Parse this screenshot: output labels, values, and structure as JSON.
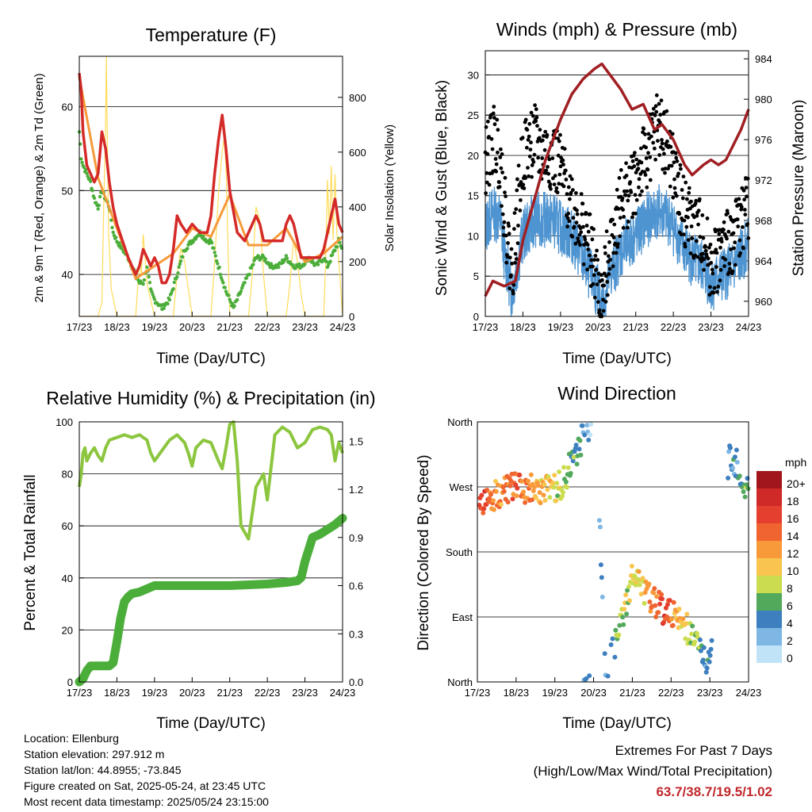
{
  "panels": {
    "temperature": {
      "title": "Temperature (F)",
      "ylabel_left": "2m & 9m T (Red, Orange) & 2m Td (Green)",
      "ylabel_right": "Solar Insolation (Yellow)",
      "xlabel": "Time (Day/UTC)"
    },
    "winds": {
      "title": "Winds (mph) & Pressure (mb)",
      "ylabel_left": "Sonic Wind & Gust (Blue, Black)",
      "ylabel_right": "Station Pressure (Maroon)",
      "xlabel": "Time (Day/UTC)"
    },
    "humidity": {
      "title": "Relative Humidity (%) & Precipitation (in)",
      "ylabel_left": "Percent & Total Rainfall",
      "xlabel": "Time (Day/UTC)"
    },
    "direction": {
      "title": "Wind Direction",
      "ylabel_left": "Direction (Colored By Speed)",
      "xlabel": "Time (Day/UTC)",
      "colorbar_title": "mph",
      "colorbar_labels": [
        "20+",
        "18",
        "16",
        "14",
        "12",
        "10",
        "8",
        "6",
        "4",
        "2",
        "0"
      ],
      "colorbar_colors": [
        "#a1161c",
        "#cf2a27",
        "#e5402f",
        "#f0642f",
        "#f99a3a",
        "#fac54e",
        "#cbdd4f",
        "#52a95c",
        "#3d7fbf",
        "#7eb7e4",
        "#c0e3f7"
      ]
    }
  },
  "info": {
    "location": "Location: Ellenburg",
    "elevation": "Station elevation: 297.912 m",
    "latlon": "Station lat/lon: 44.8955; -73.845",
    "created": "Figure created on Sat, 2025-05-24, at 23:45 UTC",
    "recent": "Most recent data timestamp: 2025/05/24 23:15:00"
  },
  "extremes": {
    "line1": "Extremes For Past 7 Days",
    "line2": "(High/Low/Max Wind/Total Precipitation)",
    "values": "63.7/38.7/19.5/1.02"
  },
  "chart_data": [
    {
      "type": "line",
      "title": "Temperature (F)",
      "x_ticks": [
        "17/23",
        "18/23",
        "19/23",
        "20/23",
        "21/23",
        "22/23",
        "23/23",
        "24/23"
      ],
      "xlim": [
        0,
        7
      ],
      "ylim": [
        35,
        66
      ],
      "y_ticks": [
        40,
        50,
        60
      ],
      "y2lim": [
        0,
        950
      ],
      "y2_ticks": [
        0,
        200,
        400,
        600,
        800
      ],
      "colors": {
        "t2m": "#d42a28",
        "t9m": "#f59a3a",
        "td2m": "#4cae3a",
        "solar": "#ffdc5a"
      },
      "series": [
        {
          "name": "2m T",
          "x": [
            0,
            0.05,
            0.1,
            0.2,
            0.3,
            0.4,
            0.5,
            0.6,
            0.7,
            0.8,
            0.9,
            1.0,
            1.15,
            1.3,
            1.5,
            1.6,
            1.7,
            1.8,
            1.9,
            2.0,
            2.1,
            2.2,
            2.3,
            2.4,
            2.5,
            2.6,
            2.7,
            2.85,
            3.0,
            3.2,
            3.4,
            3.5,
            3.6,
            3.7,
            3.8,
            3.9,
            4.0,
            4.2,
            4.4,
            4.6,
            4.7,
            4.8,
            4.9,
            5.0,
            5.2,
            5.4,
            5.5,
            5.6,
            5.7,
            5.8,
            5.9,
            6.0,
            6.2,
            6.4,
            6.5,
            6.6,
            6.7,
            6.8,
            6.9,
            7.0
          ],
          "y": [
            64,
            62,
            57,
            53,
            52,
            51,
            52,
            57,
            55,
            51,
            48,
            46,
            44,
            42,
            40,
            41,
            43,
            42,
            41,
            42,
            41,
            39,
            39,
            40,
            43,
            47,
            46,
            45,
            46,
            45,
            45,
            47,
            52,
            56,
            59,
            55,
            50,
            45,
            44,
            46,
            47,
            46,
            44,
            44,
            44,
            44,
            46,
            47,
            46,
            44,
            42,
            42,
            42,
            42,
            43,
            45,
            47,
            49,
            46,
            45
          ]
        },
        {
          "name": "9m T",
          "x": [
            0,
            0.5,
            1.0,
            1.5,
            2.0,
            2.5,
            3.0,
            3.5,
            4.0,
            4.5,
            5.0,
            5.5,
            6.0,
            6.5,
            7.0
          ],
          "y": [
            63.5,
            51.5,
            45.5,
            39.5,
            41,
            42.5,
            45.5,
            44.5,
            49.5,
            43.5,
            43.5,
            45.5,
            41.5,
            42.5,
            44.5
          ]
        },
        {
          "name": "2m Td",
          "x": [
            0,
            0.05,
            0.1,
            0.2,
            0.3,
            0.4,
            0.5,
            0.6,
            0.7,
            0.8,
            0.9,
            1.0,
            1.15,
            1.3,
            1.5,
            1.6,
            1.7,
            1.8,
            1.9,
            2.0,
            2.2,
            2.4,
            2.6,
            2.8,
            3.0,
            3.2,
            3.4,
            3.5,
            3.7,
            3.9,
            4.0,
            4.1,
            4.2,
            4.3,
            4.5,
            4.7,
            4.9,
            5.1,
            5.3,
            5.5,
            5.7,
            5.9,
            6.1,
            6.3,
            6.5,
            6.6,
            6.7,
            6.8,
            6.9,
            7.0
          ],
          "y": [
            57,
            54,
            53,
            52,
            51,
            49,
            48,
            50,
            49,
            48,
            45,
            44,
            43,
            42,
            40,
            39,
            39,
            41,
            38,
            37,
            36,
            37,
            40,
            43,
            44,
            45,
            44,
            44,
            41,
            38,
            37,
            36,
            37,
            38,
            40,
            42,
            42,
            41,
            41,
            42,
            41,
            41,
            42,
            41,
            42,
            41,
            42,
            43,
            44,
            43
          ]
        },
        {
          "name": "Solar",
          "axis": "right",
          "x": [
            0,
            0.3,
            0.5,
            0.6,
            0.65,
            0.7,
            0.72,
            0.75,
            0.78,
            0.85,
            1.0,
            1.5,
            1.6,
            1.65,
            1.7,
            1.8,
            1.9,
            2.0,
            2.5,
            2.6,
            2.7,
            2.8,
            2.9,
            3.0,
            3.5,
            3.6,
            3.7,
            3.8,
            3.85,
            3.9,
            4.0,
            4.5,
            4.6,
            4.7,
            4.8,
            4.9,
            5.0,
            5.5,
            5.6,
            5.7,
            5.8,
            5.9,
            6.0,
            6.5,
            6.55,
            6.6,
            6.65,
            6.7,
            6.75,
            6.8,
            6.85,
            6.9,
            7.0
          ],
          "y": [
            0,
            0,
            0,
            50,
            400,
            700,
            950,
            600,
            300,
            100,
            0,
            0,
            200,
            150,
            300,
            120,
            60,
            0,
            0,
            150,
            250,
            200,
            100,
            0,
            0,
            200,
            450,
            600,
            650,
            550,
            0,
            0,
            150,
            400,
            350,
            150,
            0,
            0,
            120,
            280,
            200,
            80,
            0,
            0,
            200,
            500,
            300,
            550,
            280,
            520,
            300,
            200,
            0
          ]
        }
      ]
    },
    {
      "type": "scatter",
      "title": "Winds (mph) & Pressure (mb)",
      "x_ticks": [
        "17/23",
        "18/23",
        "19/23",
        "20/23",
        "21/23",
        "22/23",
        "23/23",
        "24/23"
      ],
      "xlim": [
        0,
        7
      ],
      "ylim": [
        0,
        33
      ],
      "y_ticks": [
        0,
        5,
        10,
        15,
        20,
        25,
        30
      ],
      "y2lim": [
        958.5,
        984.8
      ],
      "y2_ticks": [
        960,
        964,
        968,
        972,
        976,
        980,
        984
      ],
      "colors": {
        "wind": "#4d94d1",
        "gust": "#000000",
        "pressure": "#a01f22"
      },
      "series": [
        {
          "name": "Sonic Wind",
          "x": [
            0,
            0.2,
            0.4,
            0.5,
            0.7,
            1.0,
            1.3,
            1.5,
            1.8,
            2.0,
            2.3,
            2.6,
            2.8,
            3.0,
            3.1,
            3.3,
            3.6,
            4.0,
            4.3,
            4.6,
            4.9,
            5.2,
            5.5,
            5.8,
            6.0,
            6.3,
            6.6,
            7.0
          ],
          "y": [
            11,
            13,
            12,
            8,
            3,
            10,
            12,
            12,
            12,
            11,
            10,
            7,
            5,
            3,
            1,
            5,
            8,
            10,
            12,
            13,
            12,
            9,
            7,
            6,
            4,
            5,
            6,
            9
          ]
        },
        {
          "name": "Gust",
          "x": [
            0,
            0.2,
            0.4,
            0.5,
            0.7,
            1.0,
            1.3,
            1.5,
            1.8,
            2.0,
            2.3,
            2.6,
            2.8,
            3.0,
            3.1,
            3.3,
            3.6,
            4.0,
            4.3,
            4.6,
            4.9,
            5.2,
            5.5,
            5.8,
            6.0,
            6.3,
            6.6,
            7.0
          ],
          "y": [
            19,
            22,
            20,
            14,
            5,
            20,
            22,
            20,
            20,
            18,
            14,
            11,
            8,
            4,
            1,
            9,
            14,
            17,
            20,
            24,
            20,
            14,
            11,
            10,
            6,
            8,
            10,
            14
          ]
        },
        {
          "name": "Station Pressure",
          "axis": "right",
          "x": [
            0,
            0.2,
            0.5,
            0.8,
            1.0,
            1.3,
            1.6,
            2.0,
            2.3,
            2.6,
            2.9,
            3.1,
            3.3,
            3.6,
            3.9,
            4.2,
            4.5,
            4.7,
            5.0,
            5.3,
            5.5,
            5.8,
            6.0,
            6.2,
            6.4,
            6.6,
            6.8,
            7.0
          ],
          "y": [
            960.5,
            962,
            961.5,
            962,
            966,
            970,
            974,
            978,
            980.5,
            982,
            983,
            983.5,
            982.5,
            981,
            979,
            979.5,
            977,
            977.5,
            976,
            973.5,
            972.5,
            973.5,
            974,
            973.5,
            974,
            975.5,
            977,
            979
          ]
        }
      ]
    },
    {
      "type": "line",
      "title": "Relative Humidity (%) & Precipitation (in)",
      "x_ticks": [
        "17/23",
        "18/23",
        "19/23",
        "20/23",
        "21/23",
        "22/23",
        "23/23",
        "24/23"
      ],
      "xlim": [
        0,
        7
      ],
      "ylim": [
        0,
        100
      ],
      "y_ticks": [
        0,
        20,
        40,
        60,
        80,
        100
      ],
      "y2lim": [
        0,
        1.62
      ],
      "y2_ticks": [
        "0.0",
        "0.3",
        "0.6",
        "0.9",
        "1.2",
        "1.5"
      ],
      "colors": {
        "rh": "#8cc63f",
        "precip": "#4cae3a"
      },
      "series": [
        {
          "name": "RH",
          "x": [
            0,
            0.05,
            0.1,
            0.15,
            0.2,
            0.3,
            0.4,
            0.5,
            0.6,
            0.7,
            0.8,
            1.0,
            1.2,
            1.4,
            1.6,
            1.8,
            1.9,
            2.0,
            2.2,
            2.4,
            2.6,
            2.8,
            2.9,
            3.0,
            3.1,
            3.3,
            3.5,
            3.7,
            3.8,
            3.9,
            4.0,
            4.1,
            4.2,
            4.3,
            4.5,
            4.7,
            4.9,
            5.0,
            5.2,
            5.4,
            5.6,
            5.8,
            6.0,
            6.2,
            6.4,
            6.6,
            6.7,
            6.8,
            6.9,
            7.0
          ],
          "y": [
            75,
            80,
            88,
            90,
            85,
            88,
            90,
            87,
            85,
            90,
            93,
            94,
            95,
            94,
            95,
            93,
            88,
            85,
            89,
            93,
            95,
            92,
            88,
            83,
            90,
            93,
            92,
            85,
            82,
            90,
            99,
            100,
            85,
            60,
            55,
            75,
            80,
            70,
            95,
            98,
            96,
            90,
            92,
            97,
            98,
            97,
            95,
            85,
            92,
            88
          ]
        },
        {
          "name": "Precip",
          "axis": "right",
          "x": [
            0,
            0.1,
            0.2,
            0.3,
            0.8,
            0.9,
            1.0,
            1.1,
            1.2,
            1.3,
            1.4,
            1.6,
            2.0,
            2.5,
            3.0,
            4.0,
            5.0,
            5.5,
            5.8,
            5.9,
            6.0,
            6.2,
            6.4,
            6.6,
            6.8,
            7.0
          ],
          "y": [
            0,
            0.02,
            0.07,
            0.1,
            0.1,
            0.12,
            0.25,
            0.4,
            0.5,
            0.53,
            0.55,
            0.56,
            0.6,
            0.6,
            0.6,
            0.6,
            0.61,
            0.62,
            0.63,
            0.65,
            0.75,
            0.9,
            0.92,
            0.95,
            0.98,
            1.02
          ]
        }
      ]
    },
    {
      "type": "scatter",
      "title": "Wind Direction",
      "x_ticks": [
        "17/23",
        "18/23",
        "19/23",
        "20/23",
        "21/23",
        "22/23",
        "23/23",
        "24/23"
      ],
      "xlim": [
        0,
        7
      ],
      "y_ticks": [
        "North",
        "East",
        "South",
        "West",
        "North"
      ],
      "ylim": [
        0,
        360
      ],
      "series": [
        {
          "name": "Direction",
          "x": [
            0.1,
            0.2,
            0.3,
            0.5,
            0.7,
            1.0,
            1.2,
            1.4,
            1.6,
            1.8,
            2.0,
            2.2,
            2.4,
            2.6,
            2.7,
            2.9,
            3.1,
            3.3,
            3.4,
            3.6,
            3.8,
            4.0,
            4.2,
            4.4,
            4.6,
            4.8,
            5.0,
            5.2,
            5.4,
            5.6,
            5.8,
            6.0,
            6.5,
            6.7,
            6.9
          ],
          "y": [
            250,
            248,
            255,
            260,
            265,
            270,
            265,
            268,
            268,
            265,
            268,
            275,
            300,
            320,
            340,
            355,
            300,
            10,
            30,
            60,
            100,
            150,
            135,
            120,
            110,
            100,
            95,
            85,
            75,
            60,
            40,
            20,
            320,
            300,
            270
          ],
          "speed": [
            15,
            17,
            14,
            12,
            13,
            14,
            13,
            12,
            11,
            10,
            9,
            8,
            6,
            5,
            4,
            2,
            3,
            3,
            5,
            6,
            8,
            9,
            10,
            11,
            13,
            16,
            14,
            11,
            9,
            7,
            5,
            3,
            3,
            4,
            6
          ]
        }
      ]
    }
  ]
}
